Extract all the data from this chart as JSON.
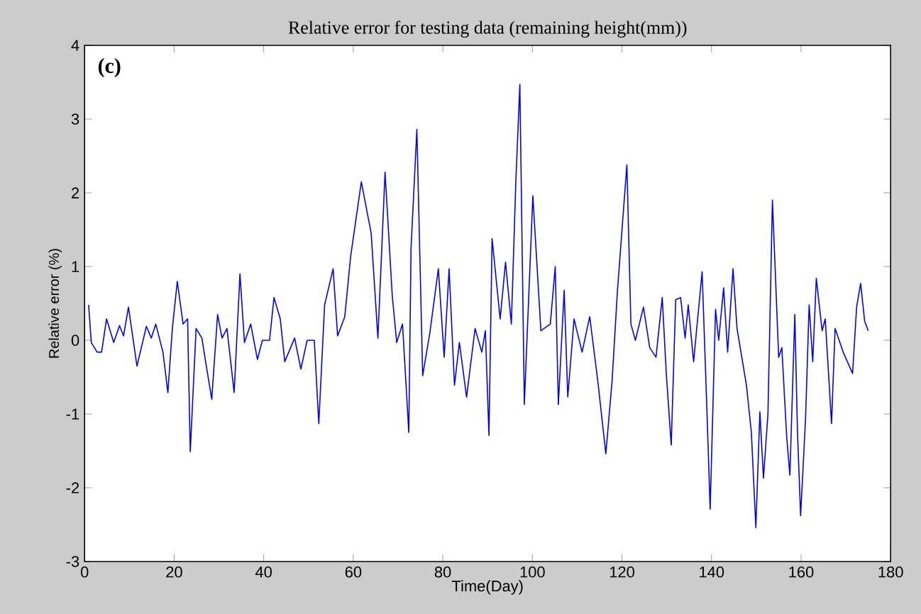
{
  "chart_data": {
    "type": "line",
    "title": "Relative error for testing data (remaining height(mm))",
    "xlabel": "Time(Day)",
    "ylabel": "Relative error (%)",
    "annotations": [
      "(c)"
    ],
    "xlim": [
      0,
      180
    ],
    "ylim": [
      -3,
      4
    ],
    "xticks": [
      0,
      20,
      40,
      60,
      80,
      100,
      120,
      140,
      160,
      180
    ],
    "yticks": [
      -3,
      -2,
      -1,
      0,
      1,
      2,
      3,
      4
    ],
    "grid": false,
    "marker": "none",
    "line_style": "solid",
    "series": [
      {
        "color": "#0000ff",
        "x": [
          0.9,
          1.5,
          2.8,
          3.8,
          4.9,
          6.5,
          7.8,
          8.7,
          9.8,
          11.7,
          13.8,
          14.9,
          15.9,
          17.5,
          18.6,
          19.6,
          20.7,
          22,
          23,
          23.6,
          24.9,
          26.2,
          27,
          28.4,
          29.7,
          30.7,
          31.8,
          33.4,
          34.7,
          35.7,
          37.1,
          38.6,
          39.7,
          41.3,
          42.3,
          43.7,
          44.7,
          46.9,
          48.3,
          49.7,
          51.3,
          52.3,
          53.6,
          55.5,
          56.5,
          58.1,
          59.4,
          61.8,
          64,
          65.5,
          67.1,
          68.7,
          69.7,
          71,
          72.4,
          72.9,
          74.2,
          75.5,
          77.1,
          79,
          80.3,
          81.4,
          82.6,
          83.7,
          85.3,
          87.2,
          88.7,
          89.5,
          90.3,
          91,
          92.8,
          94,
          95.3,
          96.3,
          97.2,
          98.2,
          100.1,
          101.9,
          104,
          105.1,
          105.8,
          107.1,
          107.9,
          109.3,
          111.1,
          112.8,
          114.6,
          116.4,
          117.8,
          119,
          121.1,
          122,
          123,
          124.8,
          126.2,
          127.6,
          129,
          129.9,
          131,
          132,
          133.1,
          134.1,
          134.8,
          136,
          137.9,
          138.8,
          139.7,
          140.9,
          141.6,
          142.7,
          143.6,
          144.8,
          145.7,
          147.8,
          148.9,
          149.9,
          150.8,
          151.6,
          152.6,
          153.6,
          155,
          155.7,
          156.8,
          157.5,
          158.6,
          159.2,
          159.9,
          161,
          161.8,
          162.6,
          163.4,
          164.7,
          165.4,
          166.8,
          167.6,
          169.4,
          171.5,
          172.4,
          173.3,
          174.2,
          175
        ],
        "values": [
          0.48,
          -0.03,
          -0.16,
          -0.16,
          0.29,
          -0.03,
          0.2,
          0.06,
          0.45,
          -0.35,
          0.19,
          0.03,
          0.22,
          -0.16,
          -0.71,
          0.16,
          0.8,
          0.22,
          0.29,
          -1.51,
          0.16,
          0.03,
          -0.28,
          -0.8,
          0.35,
          0.03,
          0.16,
          -0.71,
          0.9,
          -0.03,
          0.22,
          -0.26,
          0.0,
          0.0,
          0.58,
          0.29,
          -0.29,
          0.03,
          -0.39,
          0.0,
          0.0,
          -1.13,
          0.48,
          0.97,
          0.06,
          0.32,
          1.13,
          2.15,
          1.45,
          0.03,
          2.28,
          0.61,
          -0.03,
          0.22,
          -1.25,
          1.25,
          2.86,
          -0.48,
          0.1,
          0.97,
          -0.23,
          0.97,
          -0.61,
          -0.03,
          -0.77,
          0.16,
          -0.16,
          0.13,
          -1.29,
          1.38,
          0.29,
          1.06,
          0.22,
          2.15,
          3.47,
          -0.87,
          1.96,
          0.13,
          0.22,
          1.0,
          -0.87,
          0.68,
          -0.77,
          0.29,
          -0.16,
          0.32,
          -0.55,
          -1.54,
          -0.55,
          0.68,
          2.38,
          0.22,
          0.0,
          0.45,
          -0.1,
          -0.23,
          0.58,
          -0.45,
          -1.42,
          0.55,
          0.58,
          0.03,
          0.48,
          -0.29,
          0.93,
          -0.64,
          -2.29,
          0.42,
          0.0,
          0.71,
          -0.16,
          0.97,
          0.16,
          -0.61,
          -1.25,
          -2.54,
          -0.97,
          -1.87,
          -1.0,
          1.9,
          -0.23,
          -0.1,
          -1.32,
          -1.83,
          0.35,
          -1.25,
          -2.38,
          -1.06,
          0.48,
          -0.29,
          0.84,
          0.13,
          0.29,
          -1.13,
          0.16,
          -0.16,
          -0.45,
          0.45,
          0.77,
          0.26,
          0.13
        ]
      }
    ]
  }
}
